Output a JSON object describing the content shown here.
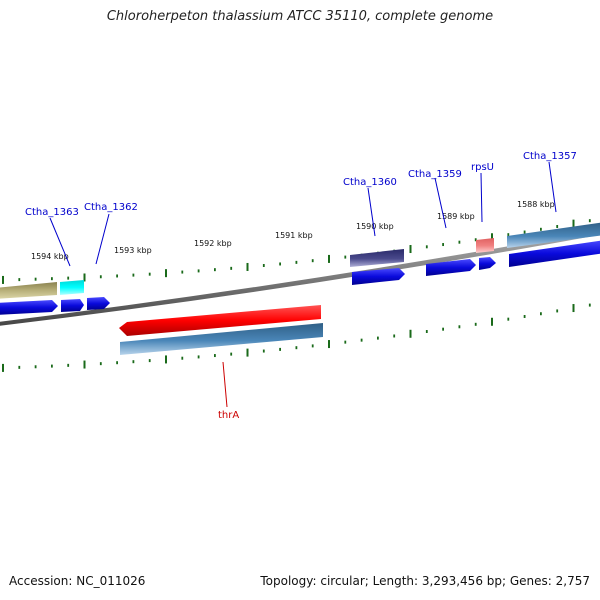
{
  "title": "Chloroherpeton thalassium ATCC 35110, complete genome",
  "accession": "Accession: NC_011026",
  "summary": "Topology: circular; Length: 3,293,456 bp; Genes: 2,757",
  "tick_labels": [
    "1594 kbp",
    "1593 kbp",
    "1592 kbp",
    "1591 kbp",
    "1590 kbp",
    "1589 kbp",
    "1588 kbp"
  ],
  "gene_labels": {
    "ctha_1363": "Ctha_1363",
    "ctha_1362": "Ctha_1362",
    "ctha_1360": "Ctha_1360",
    "ctha_1359": "Ctha_1359",
    "rpsu": "rpsU",
    "ctha_1357": "Ctha_1357",
    "thra": "thrA"
  },
  "colors": {
    "forward_cds": "#0a0adc",
    "reverse_cds": "#ff0000",
    "tick": "#1a6a1a",
    "backbone": "#7a7a7a",
    "label_forward": "#0000cc",
    "label_reverse": "#cc0000"
  }
}
